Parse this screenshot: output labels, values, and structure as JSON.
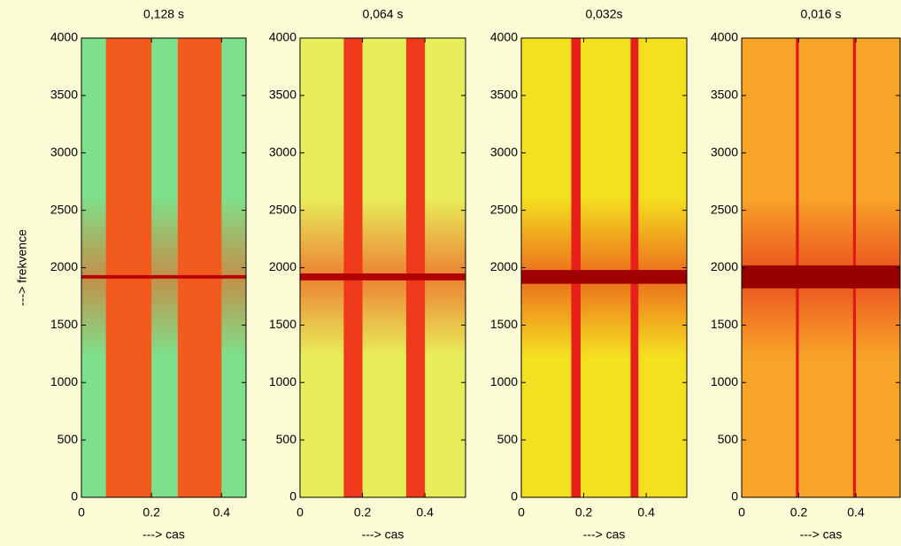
{
  "chart_data": [
    {
      "type": "spectrogram",
      "title": "0,128 s",
      "xlabel": "---> cas",
      "ylabel": "---> frekvence",
      "xlim": [
        0,
        0.47
      ],
      "ylim": [
        0,
        4000
      ],
      "xticks": [
        0,
        0.2,
        0.4
      ],
      "yticks": [
        0,
        500,
        1000,
        1500,
        2000,
        2500,
        3000,
        3500,
        4000
      ],
      "tone_hz": 1920,
      "tone_width_hz": 30,
      "bursts": [
        {
          "start": 0.07,
          "end": 0.2
        },
        {
          "start": 0.275,
          "end": 0.4
        }
      ],
      "background_color": "#7ee08a",
      "burst_color": "#f25a1e",
      "tone_color": "#b80000"
    },
    {
      "type": "spectrogram",
      "title": "0,064 s",
      "xlabel": "---> cas",
      "xlim": [
        0,
        0.53
      ],
      "ylim": [
        0,
        4000
      ],
      "xticks": [
        0,
        0.2,
        0.4
      ],
      "yticks": [
        0,
        500,
        1000,
        1500,
        2000,
        2500,
        3000,
        3500,
        4000
      ],
      "tone_hz": 1920,
      "tone_width_hz": 60,
      "bursts": [
        {
          "start": 0.14,
          "end": 0.2
        },
        {
          "start": 0.34,
          "end": 0.4
        }
      ],
      "background_color": "#e8ee5a",
      "burst_color": "#ee3a1a",
      "tone_color": "#b00000"
    },
    {
      "type": "spectrogram",
      "title": "0,032s",
      "xlabel": "---> cas",
      "xlim": [
        0,
        0.53
      ],
      "ylim": [
        0,
        4000
      ],
      "xticks": [
        0,
        0.2,
        0.4
      ],
      "yticks": [
        0,
        500,
        1000,
        1500,
        2000,
        2500,
        3000,
        3500,
        4000
      ],
      "tone_hz": 1920,
      "tone_width_hz": 120,
      "bursts": [
        {
          "start": 0.16,
          "end": 0.19
        },
        {
          "start": 0.35,
          "end": 0.375
        }
      ],
      "background_color": "#f4e020",
      "burst_color": "#e8201a",
      "tone_color": "#a00000"
    },
    {
      "type": "spectrogram",
      "title": "0,016 s",
      "xlabel": "---> cas",
      "xlim": [
        0,
        0.555
      ],
      "ylim": [
        0,
        4000
      ],
      "xticks": [
        0,
        0.2,
        0.4
      ],
      "yticks": [
        0,
        500,
        1000,
        1500,
        2000,
        2500,
        3000,
        3500,
        4000
      ],
      "tone_hz": 1920,
      "tone_width_hz": 200,
      "bursts": [
        {
          "start": 0.19,
          "end": 0.2
        },
        {
          "start": 0.39,
          "end": 0.4
        }
      ],
      "background_color": "#f8a428",
      "burst_color": "#e01818",
      "tone_color": "#980000"
    }
  ]
}
